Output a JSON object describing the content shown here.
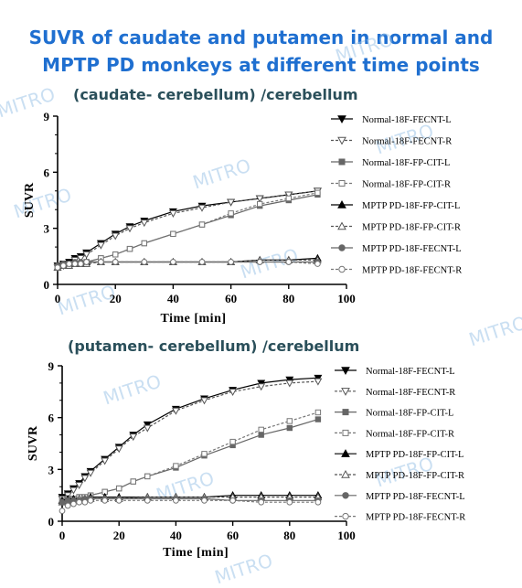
{
  "page_title_line1": "SUVR of caudate and putamen in normal and",
  "page_title_line2": "MPTP PD monkeys at different time points",
  "watermark": "MITRO",
  "chart_data": [
    {
      "type": "line",
      "title": "(caudate- cerebellum) /cerebellum",
      "xlabel": "Time [min]",
      "ylabel": "SUVR",
      "xlim": [
        0,
        100
      ],
      "ylim": [
        0,
        9
      ],
      "xticks": [
        0,
        20,
        40,
        60,
        80,
        100
      ],
      "yticks": [
        0,
        3,
        6,
        9
      ],
      "legend_position": "right",
      "series": [
        {
          "name": "Normal-18F-FECNT-L",
          "marker": "triangle-down",
          "fill": "filled",
          "x": [
            0,
            2,
            4,
            6,
            8,
            10,
            15,
            20,
            25,
            30,
            40,
            50,
            60,
            70,
            80,
            90
          ],
          "y": [
            1.0,
            1.1,
            1.2,
            1.4,
            1.5,
            1.7,
            2.2,
            2.7,
            3.1,
            3.4,
            3.9,
            4.2,
            4.4,
            4.6,
            4.8,
            5.0
          ]
        },
        {
          "name": "Normal-18F-FECNT-R",
          "marker": "triangle-down",
          "fill": "open",
          "x": [
            0,
            2,
            4,
            6,
            8,
            10,
            15,
            20,
            25,
            30,
            40,
            50,
            60,
            70,
            80,
            90
          ],
          "y": [
            0.9,
            1.0,
            1.1,
            1.3,
            1.4,
            1.6,
            2.1,
            2.6,
            3.0,
            3.3,
            3.8,
            4.1,
            4.4,
            4.6,
            4.8,
            5.0
          ]
        },
        {
          "name": "Normal-18F-FP-CIT-L",
          "marker": "square",
          "fill": "filled",
          "x": [
            0,
            2,
            4,
            6,
            8,
            10,
            15,
            20,
            25,
            30,
            40,
            50,
            60,
            70,
            80,
            90
          ],
          "y": [
            0.9,
            1.0,
            1.0,
            1.1,
            1.1,
            1.2,
            1.4,
            1.6,
            1.9,
            2.2,
            2.7,
            3.2,
            3.7,
            4.2,
            4.5,
            4.8
          ]
        },
        {
          "name": "Normal-18F-FP-CIT-R",
          "marker": "square",
          "fill": "open",
          "x": [
            0,
            2,
            4,
            6,
            8,
            10,
            15,
            20,
            25,
            30,
            40,
            50,
            60,
            70,
            80,
            90
          ],
          "y": [
            0.9,
            1.0,
            1.0,
            1.1,
            1.1,
            1.2,
            1.4,
            1.6,
            1.9,
            2.2,
            2.7,
            3.2,
            3.8,
            4.3,
            4.6,
            4.9
          ]
        },
        {
          "name": "MPTP PD-18F-FP-CIT-L",
          "marker": "triangle-up",
          "fill": "filled",
          "x": [
            0,
            2,
            4,
            6,
            8,
            10,
            15,
            20,
            30,
            40,
            50,
            60,
            70,
            80,
            90
          ],
          "y": [
            0.9,
            1.0,
            1.1,
            1.1,
            1.1,
            1.2,
            1.2,
            1.2,
            1.2,
            1.2,
            1.2,
            1.2,
            1.3,
            1.3,
            1.4
          ]
        },
        {
          "name": "MPTP PD-18F-FP-CIT-R",
          "marker": "triangle-up",
          "fill": "open",
          "x": [
            0,
            2,
            4,
            6,
            8,
            10,
            15,
            20,
            30,
            40,
            50,
            60,
            70,
            80,
            90
          ],
          "y": [
            0.9,
            1.0,
            1.0,
            1.1,
            1.1,
            1.1,
            1.2,
            1.2,
            1.2,
            1.2,
            1.2,
            1.2,
            1.3,
            1.3,
            1.3
          ]
        },
        {
          "name": "MPTP PD-18F-FECNT-L",
          "marker": "circle",
          "fill": "filled",
          "x": [
            0,
            2,
            4,
            6,
            8,
            10,
            15,
            20,
            30,
            40,
            50,
            60,
            70,
            80,
            90
          ],
          "y": [
            1.0,
            1.1,
            1.1,
            1.2,
            1.2,
            1.2,
            1.2,
            1.2,
            1.2,
            1.2,
            1.2,
            1.2,
            1.2,
            1.2,
            1.2
          ]
        },
        {
          "name": "MPTP PD-18F-FECNT-R",
          "marker": "circle",
          "fill": "open",
          "x": [
            0,
            2,
            4,
            6,
            8,
            10,
            15,
            20,
            30,
            40,
            50,
            60,
            70,
            80,
            90
          ],
          "y": [
            0.9,
            1.0,
            1.1,
            1.1,
            1.1,
            1.2,
            1.2,
            1.2,
            1.2,
            1.2,
            1.2,
            1.2,
            1.2,
            1.2,
            1.1
          ]
        }
      ]
    },
    {
      "type": "line",
      "title": "(putamen- cerebellum) /cerebellum",
      "xlabel": "Time [min]",
      "ylabel": "SUVR",
      "xlim": [
        0,
        100
      ],
      "ylim": [
        0,
        9
      ],
      "xticks": [
        0,
        20,
        40,
        60,
        80,
        100
      ],
      "yticks": [
        0,
        3,
        6,
        9
      ],
      "legend_position": "right",
      "series": [
        {
          "name": "Normal-18F-FECNT-L",
          "marker": "triangle-down",
          "fill": "filled",
          "x": [
            0,
            2,
            4,
            6,
            8,
            10,
            15,
            20,
            25,
            30,
            40,
            50,
            60,
            70,
            80,
            90
          ],
          "y": [
            1.4,
            1.6,
            1.9,
            2.2,
            2.6,
            2.9,
            3.6,
            4.3,
            5.0,
            5.6,
            6.5,
            7.1,
            7.6,
            8.0,
            8.2,
            8.3
          ]
        },
        {
          "name": "Normal-18F-FECNT-R",
          "marker": "triangle-down",
          "fill": "open",
          "x": [
            0,
            2,
            4,
            6,
            8,
            10,
            15,
            20,
            25,
            30,
            40,
            50,
            60,
            70,
            80,
            90
          ],
          "y": [
            1.3,
            1.5,
            1.8,
            2.1,
            2.5,
            2.8,
            3.5,
            4.2,
            4.9,
            5.4,
            6.4,
            7.0,
            7.5,
            7.8,
            8.0,
            8.1
          ]
        },
        {
          "name": "Normal-18F-FP-CIT-L",
          "marker": "square",
          "fill": "filled",
          "x": [
            0,
            2,
            4,
            6,
            8,
            10,
            15,
            20,
            25,
            30,
            40,
            50,
            60,
            70,
            80,
            90
          ],
          "y": [
            1.2,
            1.3,
            1.3,
            1.4,
            1.4,
            1.5,
            1.7,
            1.9,
            2.3,
            2.6,
            3.1,
            3.8,
            4.4,
            5.0,
            5.4,
            5.9
          ]
        },
        {
          "name": "Normal-18F-FP-CIT-R",
          "marker": "square",
          "fill": "open",
          "x": [
            0,
            2,
            4,
            6,
            8,
            10,
            15,
            20,
            25,
            30,
            40,
            50,
            60,
            70,
            80,
            90
          ],
          "y": [
            1.2,
            1.3,
            1.3,
            1.4,
            1.4,
            1.5,
            1.7,
            1.9,
            2.3,
            2.6,
            3.2,
            3.9,
            4.6,
            5.3,
            5.8,
            6.3
          ]
        },
        {
          "name": "MPTP PD-18F-FP-CIT-L",
          "marker": "triangle-up",
          "fill": "filled",
          "x": [
            0,
            2,
            4,
            6,
            8,
            10,
            15,
            20,
            30,
            40,
            50,
            60,
            70,
            80,
            90
          ],
          "y": [
            1.2,
            1.3,
            1.3,
            1.3,
            1.3,
            1.4,
            1.4,
            1.4,
            1.4,
            1.4,
            1.4,
            1.5,
            1.5,
            1.5,
            1.5
          ]
        },
        {
          "name": "MPTP PD-18F-FP-CIT-R",
          "marker": "triangle-up",
          "fill": "open",
          "x": [
            0,
            2,
            4,
            6,
            8,
            10,
            15,
            20,
            30,
            40,
            50,
            60,
            70,
            80,
            90
          ],
          "y": [
            1.1,
            1.2,
            1.2,
            1.3,
            1.3,
            1.3,
            1.3,
            1.3,
            1.4,
            1.4,
            1.4,
            1.4,
            1.4,
            1.4,
            1.4
          ]
        },
        {
          "name": "MPTP PD-18F-FECNT-L",
          "marker": "circle",
          "fill": "filled",
          "x": [
            0,
            2,
            4,
            6,
            8,
            10,
            15,
            20,
            30,
            40,
            50,
            60,
            70,
            80,
            90
          ],
          "y": [
            1.1,
            1.2,
            1.2,
            1.2,
            1.3,
            1.3,
            1.3,
            1.3,
            1.3,
            1.3,
            1.3,
            1.2,
            1.2,
            1.2,
            1.2
          ]
        },
        {
          "name": "MPTP PD-18F-FECNT-R",
          "marker": "circle",
          "fill": "open",
          "x": [
            0,
            2,
            4,
            6,
            8,
            10,
            15,
            20,
            30,
            40,
            50,
            60,
            70,
            80,
            90
          ],
          "y": [
            0.6,
            0.9,
            1.0,
            1.1,
            1.1,
            1.2,
            1.2,
            1.2,
            1.2,
            1.2,
            1.2,
            1.2,
            1.1,
            1.1,
            1.1
          ]
        }
      ]
    }
  ]
}
